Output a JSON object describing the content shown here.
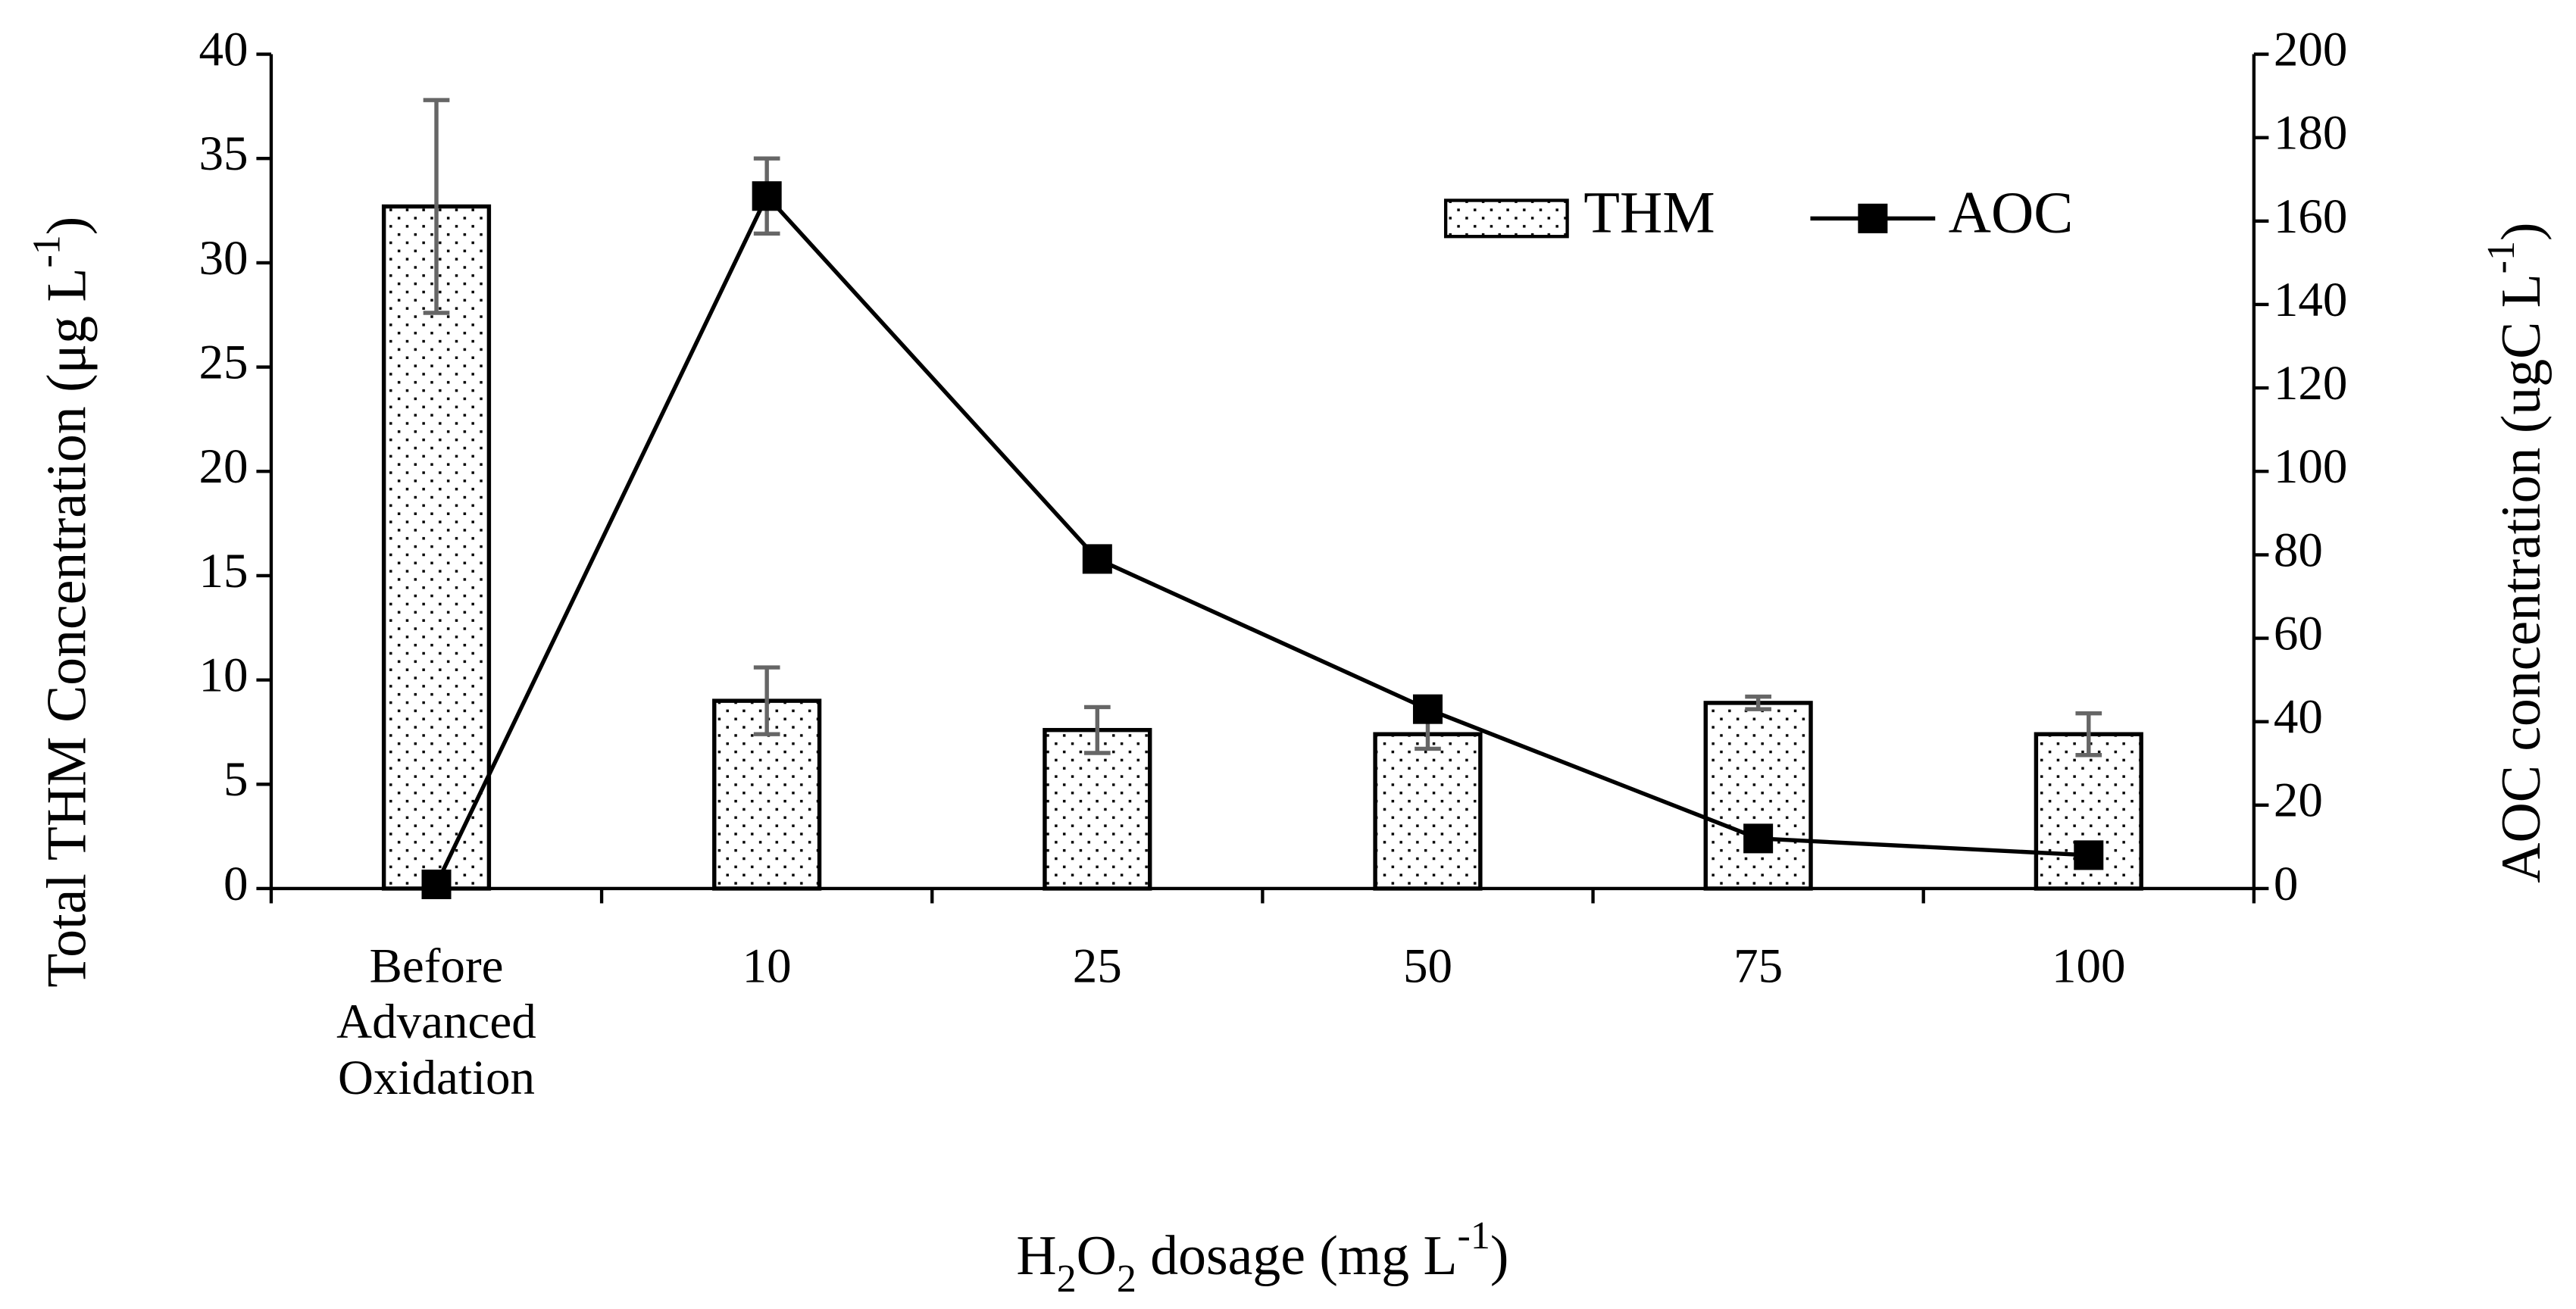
{
  "chart_data": {
    "type": "bar-line",
    "categories": [
      "Before Advanced Oxidation",
      "10",
      "25",
      "50",
      "75",
      "100"
    ],
    "x_label": [
      {
        "text": "H"
      },
      {
        "text": "2",
        "script": "sub"
      },
      {
        "text": "O"
      },
      {
        "text": "2",
        "script": "sub"
      },
      {
        "text": " dosage (mg L"
      },
      {
        "text": "-1",
        "script": "sup"
      },
      {
        "text": ")"
      }
    ],
    "y_label": [
      {
        "text": "Total THM Concentration (μg L"
      },
      {
        "text": "-1",
        "script": "sup"
      },
      {
        "text": ")"
      }
    ],
    "y2_label": [
      {
        "text": "AOC concentration   (ugC L"
      },
      {
        "text": "-1",
        "script": "sup"
      },
      {
        "text": ")"
      }
    ],
    "series": [
      {
        "name": "THM",
        "type": "bar",
        "color": "#000000",
        "values": [
          32.7,
          9.0,
          7.6,
          7.4,
          8.9,
          7.4
        ],
        "errors": [
          5.1,
          1.6,
          1.1,
          0.7,
          0.3,
          1.0
        ]
      },
      {
        "name": "AOC",
        "type": "line",
        "axis": "y2",
        "color": "#000000",
        "values": [
          1,
          166,
          79,
          43,
          12,
          8
        ],
        "errors": [
          1,
          9,
          2,
          2,
          2,
          1
        ]
      }
    ],
    "ylim": [
      0,
      40
    ],
    "yticks": [
      0,
      5,
      10,
      15,
      20,
      25,
      30,
      35,
      40
    ],
    "y2lim": [
      0,
      200
    ],
    "y2ticks": [
      0,
      20,
      40,
      60,
      80,
      100,
      120,
      140,
      160,
      180,
      200
    ],
    "legend": "top-right",
    "grid": false
  }
}
